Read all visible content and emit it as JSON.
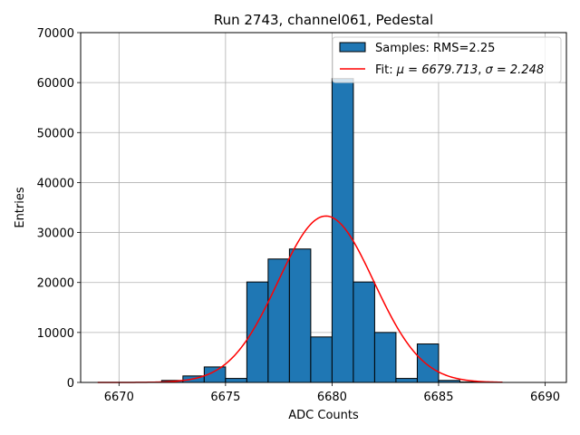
{
  "chart_data": {
    "type": "bar",
    "title": "Run 2743, channel061, Pedestal",
    "xlabel": "ADC Counts",
    "ylabel": "Entries",
    "xlim": [
      6668.2,
      6691.0
    ],
    "ylim": [
      0,
      70000
    ],
    "xticks": [
      6670,
      6675,
      6680,
      6685,
      6690
    ],
    "yticks": [
      0,
      10000,
      20000,
      30000,
      40000,
      50000,
      60000,
      70000
    ],
    "grid": true,
    "legend_position": "top-right",
    "bar_color": "#1f77b4",
    "fit_color": "#ff0000",
    "histogram": {
      "label": "Samples: RMS=2.25",
      "bin_width": 1,
      "bin_edges_start": [
        6672,
        6673,
        6674,
        6675,
        6676,
        6677,
        6678,
        6679,
        6680,
        6681,
        6682,
        6683,
        6684,
        6685,
        6686
      ],
      "values": [
        400,
        1300,
        3100,
        800,
        20100,
        24700,
        26700,
        9100,
        60800,
        20100,
        10000,
        800,
        7700,
        400,
        100
      ]
    },
    "fit": {
      "label": "Fit: μ = 6679.713, σ = 2.248",
      "label_prefix": "Fit: ",
      "mu_label": "μ = 6679.713",
      "sigma_label": "σ = 2.248",
      "mu": 6679.713,
      "sigma": 2.248,
      "amplitude": 33300,
      "x_range": [
        6669,
        6688
      ]
    }
  }
}
